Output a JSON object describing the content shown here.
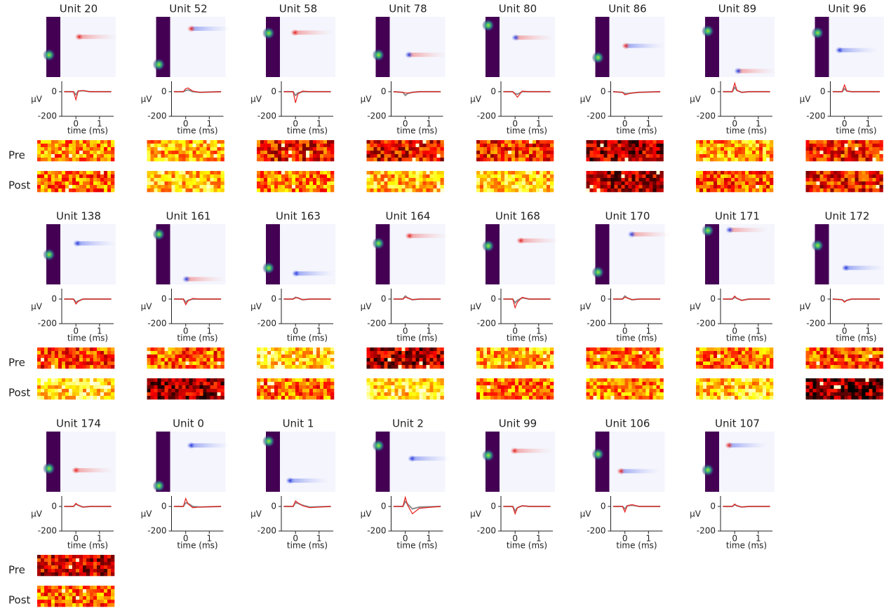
{
  "row_labels": [
    "Pre",
    "Post"
  ],
  "chart_data": [
    {
      "type": "line",
      "title": "Unit 20",
      "raster": true,
      "x": [
        -0.5,
        -0.1,
        0,
        0.1,
        0.3,
        0.6,
        1.5
      ],
      "series": [
        {
          "color": "#e8201c",
          "values": [
            0,
            0,
            -65,
            5,
            10,
            0,
            0
          ]
        },
        {
          "color": "#8c8c8c",
          "values": [
            0,
            0,
            -25,
            5,
            8,
            0,
            0
          ]
        }
      ],
      "xlim": [
        -0.6,
        1.6
      ],
      "xticks": [
        0,
        1
      ],
      "ylim": [
        -200,
        85
      ],
      "yticks": [
        -200,
        0
      ],
      "xlabel": "time (ms)",
      "ylabel": "µV"
    },
    {
      "type": "line",
      "title": "Unit 52",
      "raster": true,
      "x": [
        -0.5,
        -0.1,
        0,
        0.1,
        0.3,
        0.6,
        1.5
      ],
      "series": [
        {
          "color": "#e8201c",
          "values": [
            0,
            0,
            25,
            30,
            5,
            -5,
            0
          ]
        },
        {
          "color": "#8c8c8c",
          "values": [
            0,
            0,
            10,
            15,
            0,
            -5,
            0
          ]
        }
      ],
      "xlim": [
        -0.6,
        1.6
      ],
      "xticks": [
        0,
        1
      ],
      "ylim": [
        -200,
        85
      ],
      "yticks": [
        -200,
        0
      ],
      "xlabel": "time (ms)",
      "ylabel": "µV"
    },
    {
      "type": "line",
      "title": "Unit 58",
      "raster": true,
      "x": [
        -0.5,
        -0.1,
        0,
        0.1,
        0.3,
        0.6,
        1.5
      ],
      "series": [
        {
          "color": "#e8201c",
          "values": [
            0,
            0,
            -90,
            -20,
            5,
            0,
            0
          ]
        },
        {
          "color": "#8c8c8c",
          "values": [
            0,
            0,
            -30,
            -10,
            0,
            0,
            0
          ]
        }
      ],
      "xlim": [
        -0.6,
        1.6
      ],
      "xticks": [
        0,
        1
      ],
      "ylim": [
        -200,
        85
      ],
      "yticks": [
        -200,
        0
      ],
      "xlabel": "time (ms)",
      "ylabel": "µV"
    },
    {
      "type": "line",
      "title": "Unit 78",
      "raster": true,
      "x": [
        -0.5,
        -0.1,
        0,
        0.1,
        0.3,
        0.6,
        1.5
      ],
      "series": [
        {
          "color": "#e8201c",
          "values": [
            0,
            -5,
            -10,
            -10,
            -5,
            0,
            0
          ]
        },
        {
          "color": "#8c8c8c",
          "values": [
            0,
            -5,
            -30,
            -15,
            -5,
            0,
            0
          ]
        }
      ],
      "xlim": [
        -0.6,
        1.6
      ],
      "xticks": [
        0,
        1
      ],
      "ylim": [
        -200,
        85
      ],
      "yticks": [
        -200,
        0
      ],
      "xlabel": "time (ms)",
      "ylabel": "µV"
    },
    {
      "type": "line",
      "title": "Unit 80",
      "raster": true,
      "x": [
        -0.5,
        -0.1,
        0,
        0.1,
        0.3,
        0.6,
        1.5
      ],
      "series": [
        {
          "color": "#e8201c",
          "values": [
            0,
            0,
            -20,
            -45,
            5,
            0,
            0
          ]
        },
        {
          "color": "#8c8c8c",
          "values": [
            0,
            0,
            -15,
            -20,
            0,
            0,
            0
          ]
        }
      ],
      "xlim": [
        -0.6,
        1.6
      ],
      "xticks": [
        0,
        1
      ],
      "ylim": [
        -200,
        85
      ],
      "yticks": [
        -200,
        0
      ],
      "xlabel": "time (ms)",
      "ylabel": "µV"
    },
    {
      "type": "line",
      "title": "Unit 86",
      "raster": true,
      "x": [
        -0.5,
        -0.1,
        0,
        0.1,
        0.3,
        0.6,
        1.5
      ],
      "series": [
        {
          "color": "#e8201c",
          "values": [
            0,
            -5,
            -25,
            -20,
            -10,
            -5,
            0
          ]
        },
        {
          "color": "#8c8c8c",
          "values": [
            0,
            -5,
            -15,
            -15,
            -10,
            -5,
            0
          ]
        }
      ],
      "xlim": [
        -0.6,
        1.6
      ],
      "xticks": [
        0,
        1
      ],
      "ylim": [
        -200,
        85
      ],
      "yticks": [
        -200,
        0
      ],
      "xlabel": "time (ms)",
      "ylabel": "µV"
    },
    {
      "type": "line",
      "title": "Unit 89",
      "raster": true,
      "x": [
        -0.5,
        -0.1,
        0,
        0.1,
        0.3,
        0.6,
        1.5
      ],
      "series": [
        {
          "color": "#e8201c",
          "values": [
            0,
            0,
            70,
            10,
            -5,
            0,
            0
          ]
        },
        {
          "color": "#8c8c8c",
          "values": [
            0,
            0,
            35,
            10,
            -5,
            0,
            0
          ]
        }
      ],
      "xlim": [
        -0.6,
        1.6
      ],
      "xticks": [
        0,
        1
      ],
      "ylim": [
        -200,
        85
      ],
      "yticks": [
        -200,
        0
      ],
      "xlabel": "time (ms)",
      "ylabel": "µV"
    },
    {
      "type": "line",
      "title": "Unit 96",
      "raster": true,
      "x": [
        -0.5,
        -0.1,
        0,
        0.1,
        0.3,
        0.6,
        1.5
      ],
      "series": [
        {
          "color": "#e8201c",
          "values": [
            0,
            0,
            55,
            5,
            0,
            0,
            0
          ]
        },
        {
          "color": "#8c8c8c",
          "values": [
            0,
            0,
            25,
            5,
            0,
            0,
            0
          ]
        }
      ],
      "xlim": [
        -0.6,
        1.6
      ],
      "xticks": [
        0,
        1
      ],
      "ylim": [
        -200,
        85
      ],
      "yticks": [
        -200,
        0
      ],
      "xlabel": "time (ms)",
      "ylabel": "µV"
    },
    {
      "type": "line",
      "title": "Unit 138",
      "raster": true,
      "x": [
        -0.5,
        -0.1,
        0,
        0.1,
        0.3,
        0.6,
        1.5
      ],
      "series": [
        {
          "color": "#e8201c",
          "values": [
            0,
            0,
            -40,
            -20,
            0,
            0,
            0
          ]
        },
        {
          "color": "#8c8c8c",
          "values": [
            0,
            0,
            -25,
            -15,
            0,
            0,
            0
          ]
        }
      ],
      "xlim": [
        -0.6,
        1.6
      ],
      "xticks": [
        0,
        1
      ],
      "ylim": [
        -200,
        85
      ],
      "yticks": [
        -200,
        0
      ],
      "xlabel": "time (ms)",
      "ylabel": "µV"
    },
    {
      "type": "line",
      "title": "Unit 161",
      "raster": true,
      "x": [
        -0.5,
        -0.1,
        0,
        0.1,
        0.3,
        0.6,
        1.5
      ],
      "series": [
        {
          "color": "#e8201c",
          "values": [
            0,
            0,
            -45,
            -15,
            5,
            0,
            0
          ]
        },
        {
          "color": "#8c8c8c",
          "values": [
            0,
            0,
            -25,
            -10,
            0,
            0,
            0
          ]
        }
      ],
      "xlim": [
        -0.6,
        1.6
      ],
      "xticks": [
        0,
        1
      ],
      "ylim": [
        -200,
        85
      ],
      "yticks": [
        -200,
        0
      ],
      "xlabel": "time (ms)",
      "ylabel": "µV"
    },
    {
      "type": "line",
      "title": "Unit 163",
      "raster": true,
      "x": [
        -0.5,
        -0.1,
        0,
        0.1,
        0.3,
        0.6,
        1.5
      ],
      "series": [
        {
          "color": "#e8201c",
          "values": [
            0,
            0,
            10,
            10,
            -5,
            0,
            0
          ]
        },
        {
          "color": "#8c8c8c",
          "values": [
            0,
            0,
            15,
            10,
            -5,
            0,
            0
          ]
        }
      ],
      "xlim": [
        -0.6,
        1.6
      ],
      "xticks": [
        0,
        1
      ],
      "ylim": [
        -200,
        85
      ],
      "yticks": [
        -200,
        0
      ],
      "xlabel": "time (ms)",
      "ylabel": "µV"
    },
    {
      "type": "line",
      "title": "Unit 164",
      "raster": true,
      "x": [
        -0.5,
        -0.1,
        0,
        0.1,
        0.3,
        0.6,
        1.5
      ],
      "series": [
        {
          "color": "#e8201c",
          "values": [
            0,
            0,
            15,
            10,
            -5,
            0,
            0
          ]
        },
        {
          "color": "#8c8c8c",
          "values": [
            0,
            0,
            25,
            10,
            -5,
            0,
            0
          ]
        }
      ],
      "xlim": [
        -0.6,
        1.6
      ],
      "xticks": [
        0,
        1
      ],
      "ylim": [
        -200,
        85
      ],
      "yticks": [
        -200,
        0
      ],
      "xlabel": "time (ms)",
      "ylabel": "µV"
    },
    {
      "type": "line",
      "title": "Unit 168",
      "raster": true,
      "x": [
        -0.5,
        -0.1,
        0,
        0.1,
        0.3,
        0.6,
        1.5
      ],
      "series": [
        {
          "color": "#e8201c",
          "values": [
            0,
            0,
            -70,
            -25,
            15,
            0,
            0
          ]
        },
        {
          "color": "#8c8c8c",
          "values": [
            0,
            0,
            -30,
            -10,
            10,
            0,
            0
          ]
        }
      ],
      "xlim": [
        -0.6,
        1.6
      ],
      "xticks": [
        0,
        1
      ],
      "ylim": [
        -200,
        85
      ],
      "yticks": [
        -200,
        0
      ],
      "xlabel": "time (ms)",
      "ylabel": "µV"
    },
    {
      "type": "line",
      "title": "Unit 170",
      "raster": true,
      "x": [
        -0.5,
        -0.1,
        0,
        0.1,
        0.3,
        0.6,
        1.5
      ],
      "series": [
        {
          "color": "#e8201c",
          "values": [
            0,
            0,
            15,
            10,
            -5,
            0,
            0
          ]
        },
        {
          "color": "#8c8c8c",
          "values": [
            0,
            0,
            25,
            10,
            -5,
            0,
            0
          ]
        }
      ],
      "xlim": [
        -0.6,
        1.6
      ],
      "xticks": [
        0,
        1
      ],
      "ylim": [
        -200,
        85
      ],
      "yticks": [
        -200,
        0
      ],
      "xlabel": "time (ms)",
      "ylabel": "µV"
    },
    {
      "type": "line",
      "title": "Unit 171",
      "raster": true,
      "x": [
        -0.5,
        -0.1,
        0,
        0.1,
        0.3,
        0.6,
        1.5
      ],
      "series": [
        {
          "color": "#e8201c",
          "values": [
            0,
            0,
            25,
            5,
            -10,
            0,
            0
          ]
        },
        {
          "color": "#8c8c8c",
          "values": [
            0,
            0,
            15,
            5,
            -10,
            0,
            0
          ]
        }
      ],
      "xlim": [
        -0.6,
        1.6
      ],
      "xticks": [
        0,
        1
      ],
      "ylim": [
        -200,
        85
      ],
      "yticks": [
        -200,
        0
      ],
      "xlabel": "time (ms)",
      "ylabel": "µV"
    },
    {
      "type": "line",
      "title": "Unit 172",
      "raster": true,
      "x": [
        -0.5,
        -0.1,
        0,
        0.1,
        0.3,
        0.6,
        1.5
      ],
      "series": [
        {
          "color": "#e8201c",
          "values": [
            0,
            -5,
            -25,
            -10,
            0,
            0,
            0
          ]
        },
        {
          "color": "#8c8c8c",
          "values": [
            0,
            -5,
            -20,
            -10,
            0,
            0,
            0
          ]
        }
      ],
      "xlim": [
        -0.6,
        1.6
      ],
      "xticks": [
        0,
        1
      ],
      "ylim": [
        -200,
        85
      ],
      "yticks": [
        -200,
        0
      ],
      "xlabel": "time (ms)",
      "ylabel": "µV"
    },
    {
      "type": "line",
      "title": "Unit 174",
      "raster": true,
      "x": [
        -0.5,
        -0.1,
        0,
        0.1,
        0.3,
        0.6,
        1.5
      ],
      "series": [
        {
          "color": "#e8201c",
          "values": [
            0,
            0,
            25,
            10,
            -5,
            0,
            0
          ]
        },
        {
          "color": "#8c8c8c",
          "values": [
            0,
            0,
            20,
            10,
            -5,
            0,
            0
          ]
        }
      ],
      "xlim": [
        -0.6,
        1.6
      ],
      "xticks": [
        0,
        1
      ],
      "ylim": [
        -200,
        85
      ],
      "yticks": [
        -200,
        0
      ],
      "xlabel": "time (ms)",
      "ylabel": "µV"
    },
    {
      "type": "line",
      "title": "Unit 0",
      "raster": false,
      "x": [
        -0.5,
        -0.1,
        0,
        0.1,
        0.3,
        0.6,
        1.5
      ],
      "series": [
        {
          "color": "#e8201c",
          "values": [
            0,
            0,
            65,
            20,
            -10,
            -5,
            0
          ]
        },
        {
          "color": "#8c8c8c",
          "values": [
            0,
            0,
            30,
            25,
            0,
            -5,
            0
          ]
        }
      ],
      "xlim": [
        -0.6,
        1.6
      ],
      "xticks": [
        0,
        1
      ],
      "ylim": [
        -200,
        85
      ],
      "yticks": [
        -200,
        0
      ],
      "xlabel": "time (ms)",
      "ylabel": "µV"
    },
    {
      "type": "line",
      "title": "Unit 1",
      "raster": false,
      "x": [
        -0.5,
        -0.1,
        0,
        0.1,
        0.3,
        0.6,
        1.5
      ],
      "series": [
        {
          "color": "#e8201c",
          "values": [
            0,
            0,
            45,
            30,
            5,
            -10,
            0
          ]
        },
        {
          "color": "#8c8c8c",
          "values": [
            0,
            0,
            30,
            25,
            10,
            -5,
            0
          ]
        }
      ],
      "xlim": [
        -0.6,
        1.6
      ],
      "xticks": [
        0,
        1
      ],
      "ylim": [
        -200,
        85
      ],
      "yticks": [
        -200,
        0
      ],
      "xlabel": "time (ms)",
      "ylabel": "µV"
    },
    {
      "type": "line",
      "title": "Unit 2",
      "raster": false,
      "x": [
        -0.5,
        -0.1,
        0,
        0.1,
        0.3,
        0.6,
        1.5
      ],
      "series": [
        {
          "color": "#e8201c",
          "values": [
            0,
            0,
            75,
            10,
            -60,
            -15,
            0
          ]
        },
        {
          "color": "#8c8c8c",
          "values": [
            0,
            0,
            40,
            20,
            -20,
            -5,
            0
          ]
        }
      ],
      "xlim": [
        -0.6,
        1.6
      ],
      "xticks": [
        0,
        1
      ],
      "ylim": [
        -200,
        85
      ],
      "yticks": [
        -200,
        0
      ],
      "xlabel": "time (ms)",
      "ylabel": "µV"
    },
    {
      "type": "line",
      "title": "Unit 99",
      "raster": false,
      "x": [
        -0.5,
        -0.1,
        0,
        0.1,
        0.3,
        0.6,
        1.5
      ],
      "series": [
        {
          "color": "#e8201c",
          "values": [
            0,
            0,
            -60,
            -10,
            5,
            0,
            0
          ]
        },
        {
          "color": "#8c8c8c",
          "values": [
            0,
            0,
            -35,
            -10,
            5,
            0,
            0
          ]
        }
      ],
      "xlim": [
        -0.6,
        1.6
      ],
      "xticks": [
        0,
        1
      ],
      "ylim": [
        -200,
        85
      ],
      "yticks": [
        -200,
        0
      ],
      "xlabel": "time (ms)",
      "ylabel": "µV"
    },
    {
      "type": "line",
      "title": "Unit 106",
      "raster": false,
      "x": [
        -0.5,
        -0.1,
        0,
        0.1,
        0.3,
        0.6,
        1.5
      ],
      "series": [
        {
          "color": "#e8201c",
          "values": [
            0,
            0,
            -45,
            5,
            15,
            0,
            0
          ]
        },
        {
          "color": "#8c8c8c",
          "values": [
            0,
            0,
            -20,
            5,
            10,
            0,
            0
          ]
        }
      ],
      "xlim": [
        -0.6,
        1.6
      ],
      "xticks": [
        0,
        1
      ],
      "ylim": [
        -200,
        85
      ],
      "yticks": [
        -200,
        0
      ],
      "xlabel": "time (ms)",
      "ylabel": "µV"
    },
    {
      "type": "line",
      "title": "Unit 107",
      "raster": false,
      "x": [
        -0.5,
        -0.1,
        0,
        0.1,
        0.3,
        0.6,
        1.5
      ],
      "series": [
        {
          "color": "#e8201c",
          "values": [
            0,
            0,
            20,
            5,
            -5,
            0,
            0
          ]
        },
        {
          "color": "#8c8c8c",
          "values": [
            0,
            0,
            15,
            5,
            -5,
            0,
            0
          ]
        }
      ],
      "xlim": [
        -0.6,
        1.6
      ],
      "xticks": [
        0,
        1
      ],
      "ylim": [
        -200,
        85
      ],
      "yticks": [
        -200,
        0
      ],
      "xlabel": "time (ms)",
      "ylabel": "µV"
    }
  ]
}
